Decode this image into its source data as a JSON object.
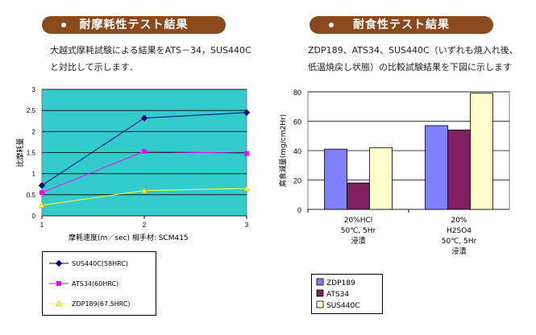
{
  "left": {
    "title": "耐摩耗性テスト結果",
    "desc_lines": [
      "大越式摩耗試験による結果をATS－34，SUS440C",
      "と対比して示します．"
    ]
  },
  "right": {
    "title": "耐食性テスト結果",
    "desc_lines": [
      "ZDP189、ATS34、SUS440C（いずれも焼入れ後、",
      "低温焼戻し状態）の比較試験結果を下図に示します"
    ]
  },
  "chart_data": [
    {
      "type": "line",
      "x": [
        1,
        2,
        3
      ],
      "xlim": [
        1,
        3
      ],
      "ylim": [
        0,
        3
      ],
      "x_ticks": [
        "1",
        "2",
        "3"
      ],
      "y_ticks": [
        "0",
        "0.5",
        "1",
        "1.5",
        "2",
        "2.5",
        "3"
      ],
      "ylabel": "比摩耗量",
      "xlabel": "摩耗速度(m／sec) 相手材: SCM415",
      "plot_background": "#33cccc",
      "grid": true,
      "legend_position": "bottom",
      "series": [
        {
          "name": "SUS440C(58HRC)",
          "values": [
            0.72,
            2.32,
            2.45
          ],
          "color": "#000080",
          "marker": "diamond"
        },
        {
          "name": "ATS34(60HRC)",
          "values": [
            0.55,
            1.53,
            1.48
          ],
          "color": "#ff00ff",
          "marker": "square"
        },
        {
          "name": "ZDP189(67.5HRC)",
          "values": [
            0.25,
            0.6,
            0.65
          ],
          "color": "#ffff33",
          "marker": "triangle"
        }
      ]
    },
    {
      "type": "bar",
      "categories": [
        [
          "20%HCl",
          "50℃, 5Hr",
          "浸漬"
        ],
        [
          "20%",
          "H2SO4",
          "50℃, 5Hr",
          "浸漬"
        ]
      ],
      "ylim": [
        0,
        80
      ],
      "y_ticks": [
        "0",
        "20",
        "40",
        "60",
        "80"
      ],
      "ylabel": "腐食減量(mg/cm2Hr)",
      "grid": true,
      "legend_position": "bottom-left",
      "series": [
        {
          "name": "ZDP189",
          "values": [
            41,
            57
          ],
          "color": "#8080ff"
        },
        {
          "name": "ATS34",
          "values": [
            18,
            54
          ],
          "color": "#802060"
        },
        {
          "name": "SUS440C",
          "values": [
            42,
            79
          ],
          "color": "#ffffcc"
        }
      ]
    }
  ]
}
